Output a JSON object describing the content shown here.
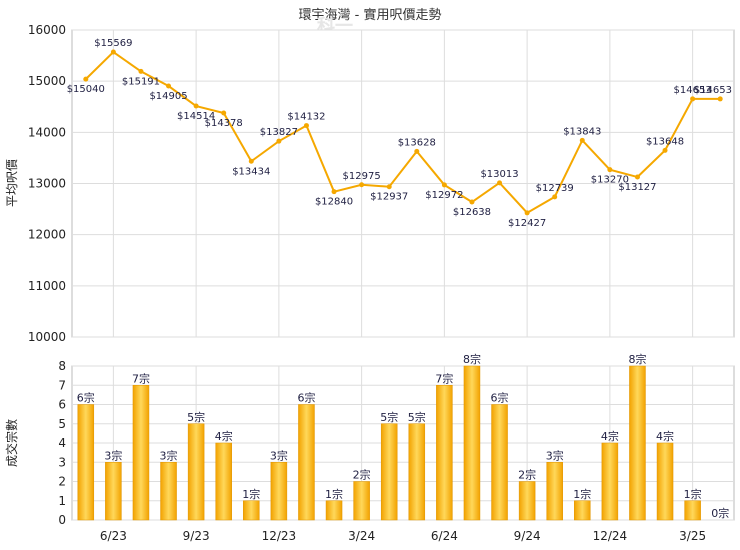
{
  "chart_data": [
    {
      "type": "line",
      "title": "環宇海灣 - 實用呎價走勢",
      "ylabel": "平均呎價",
      "ylim": [
        10000,
        16000
      ],
      "yticks": [
        10000,
        11000,
        12000,
        13000,
        14000,
        15000,
        16000
      ],
      "color": "#f5a800",
      "series": [
        {
          "values": [
            15040,
            15569,
            15191,
            14905,
            14514,
            14378,
            13434,
            13827,
            14132,
            12840,
            12975,
            12937,
            13628,
            12972,
            12638,
            13013,
            12427,
            12739,
            13843,
            13270,
            13127,
            13648,
            14653,
            14653
          ],
          "labels": [
            "$15040",
            "$15569",
            "$15191",
            "$14905",
            "$14514",
            "$14378",
            "$13434",
            "$13827",
            "$14132",
            "$12840",
            "$12975",
            "$12937",
            "$13628",
            "$12972",
            "$12638",
            "$13013",
            "$12427",
            "$12739",
            "$13843",
            "$13270",
            "$13127",
            "$13648",
            "$14653",
            "$14653"
          ]
        }
      ],
      "grid": true
    },
    {
      "type": "bar",
      "ylabel": "成交宗數",
      "ylim": [
        0,
        8
      ],
      "yticks": [
        "0",
        "1",
        "2",
        "3",
        "4",
        "5",
        "6",
        "7",
        "8"
      ],
      "categories": [
        "6/23",
        "9/23",
        "12/23",
        "3/24",
        "6/24",
        "9/24",
        "12/24",
        "3/25"
      ],
      "values": [
        6,
        3,
        7,
        3,
        5,
        4,
        1,
        3,
        6,
        1,
        2,
        5,
        5,
        7,
        8,
        6,
        2,
        3,
        1,
        4,
        8,
        4,
        1,
        0
      ],
      "labels": [
        "6宗",
        "3宗",
        "7宗",
        "3宗",
        "5宗",
        "4宗",
        "1宗",
        "3宗",
        "6宗",
        "1宗",
        "2宗",
        "5宗",
        "5宗",
        "7宗",
        "8宗",
        "6宗",
        "2宗",
        "3宗",
        "1宗",
        "4宗",
        "8宗",
        "4宗",
        "1宗",
        "0宗"
      ],
      "grid": true
    }
  ],
  "watermark": "科一"
}
